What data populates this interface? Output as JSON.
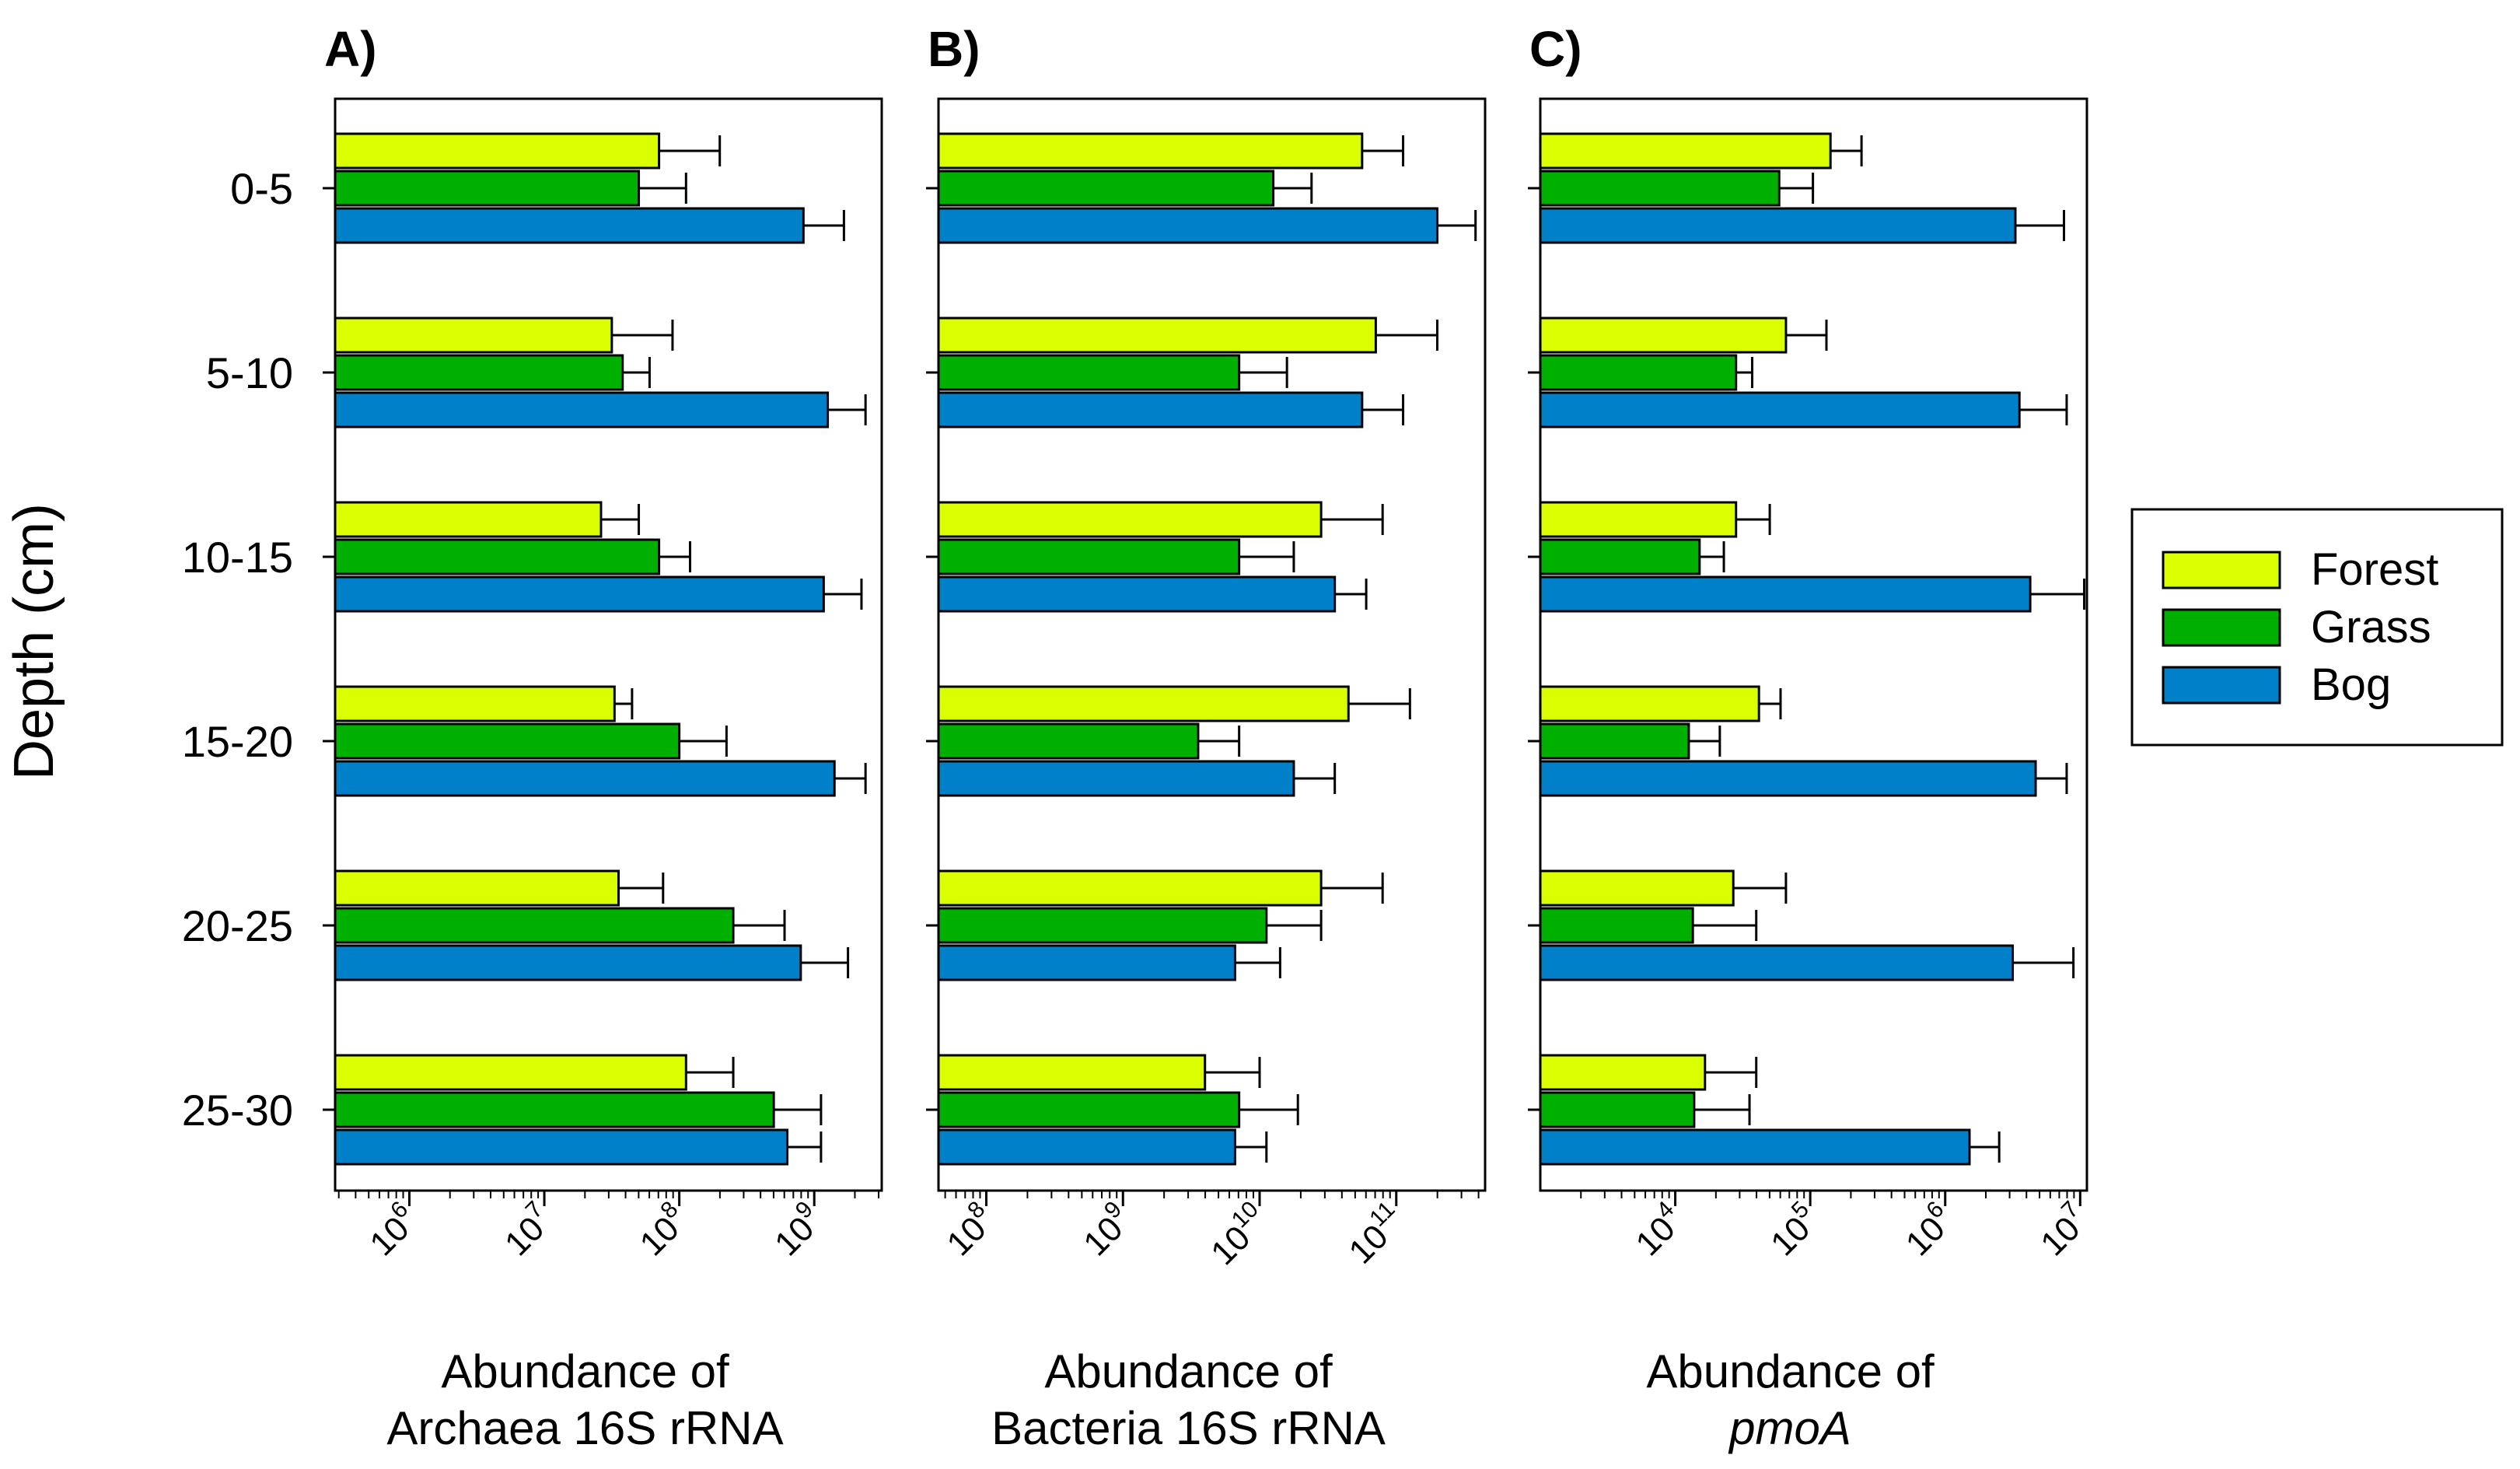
{
  "colors": {
    "forest": "#d9ff00",
    "grass": "#00b000",
    "bog": "#0080c8"
  },
  "y_axis_label": "Depth (cm)",
  "legend": [
    "Forest",
    "Grass",
    "Bog"
  ],
  "chart_data": [
    {
      "panel": "A)",
      "type": "bar",
      "orientation": "horizontal",
      "x_scale": "log10",
      "xlabel": [
        "Abundance of",
        "Archaea 16S rRNA"
      ],
      "xlabel_italic": false,
      "ylabel": "Depth (cm)",
      "categories": [
        "0-5",
        "5-10",
        "10-15",
        "15-20",
        "20-25",
        "25-30"
      ],
      "xlim_log10": [
        5.45,
        9.5
      ],
      "xticks": [
        6,
        7,
        8,
        9
      ],
      "series": [
        {
          "name": "Forest",
          "log10_values": [
            7.85,
            7.5,
            7.42,
            7.52,
            7.55,
            8.05
          ],
          "log10_err_upper": [
            8.3,
            7.95,
            7.7,
            7.65,
            7.88,
            8.4
          ]
        },
        {
          "name": "Grass",
          "log10_values": [
            7.7,
            7.58,
            7.85,
            8.0,
            8.4,
            8.7
          ],
          "log10_err_upper": [
            8.05,
            7.78,
            8.08,
            8.35,
            8.78,
            9.05
          ]
        },
        {
          "name": "Bog",
          "log10_values": [
            8.92,
            9.1,
            9.07,
            9.15,
            8.9,
            8.8
          ],
          "log10_err_upper": [
            9.22,
            9.38,
            9.35,
            9.38,
            9.25,
            9.05
          ]
        }
      ]
    },
    {
      "panel": "B)",
      "type": "bar",
      "orientation": "horizontal",
      "x_scale": "log10",
      "xlabel": [
        "Abundance of",
        "Bacteria 16S rRNA"
      ],
      "xlabel_italic": false,
      "ylabel": "Depth (cm)",
      "categories": [
        "0-5",
        "5-10",
        "10-15",
        "15-20",
        "20-25",
        "25-30"
      ],
      "xlim_log10": [
        7.65,
        11.65
      ],
      "xticks": [
        8,
        9,
        10,
        11
      ],
      "series": [
        {
          "name": "Forest",
          "log10_values": [
            10.75,
            10.85,
            10.45,
            10.65,
            10.45,
            9.6
          ],
          "log10_err_upper": [
            11.05,
            11.3,
            10.9,
            11.1,
            10.9,
            10.0
          ]
        },
        {
          "name": "Grass",
          "log10_values": [
            10.1,
            9.85,
            9.85,
            9.55,
            10.05,
            9.85
          ],
          "log10_err_upper": [
            10.38,
            10.2,
            10.25,
            9.85,
            10.45,
            10.28
          ]
        },
        {
          "name": "Bog",
          "log10_values": [
            11.3,
            10.75,
            10.55,
            10.25,
            9.82,
            9.82
          ],
          "log10_err_upper": [
            11.58,
            11.05,
            10.78,
            10.55,
            10.15,
            10.05
          ]
        }
      ]
    },
    {
      "panel": "C)",
      "type": "bar",
      "orientation": "horizontal",
      "x_scale": "log10",
      "xlabel": [
        "Abundance of",
        "pmoA"
      ],
      "xlabel_italic": true,
      "ylabel": "Depth (cm)",
      "categories": [
        "0-5",
        "5-10",
        "10-15",
        "15-20",
        "20-25",
        "25-30"
      ],
      "xlim_log10": [
        3.0,
        7.05
      ],
      "xticks": [
        4,
        5,
        6,
        7
      ],
      "series": [
        {
          "name": "Forest",
          "log10_values": [
            5.15,
            4.82,
            4.45,
            4.62,
            4.43,
            4.22
          ],
          "log10_err_upper": [
            5.38,
            5.12,
            4.7,
            4.78,
            4.82,
            4.6
          ]
        },
        {
          "name": "Grass",
          "log10_values": [
            4.77,
            4.45,
            4.18,
            4.1,
            4.13,
            4.14
          ],
          "log10_err_upper": [
            5.02,
            4.57,
            4.36,
            4.33,
            4.6,
            4.55
          ]
        },
        {
          "name": "Bog",
          "log10_values": [
            6.52,
            6.55,
            6.63,
            6.67,
            6.5,
            6.18
          ],
          "log10_err_upper": [
            6.88,
            6.9,
            7.03,
            6.9,
            6.95,
            6.4
          ]
        }
      ]
    }
  ]
}
